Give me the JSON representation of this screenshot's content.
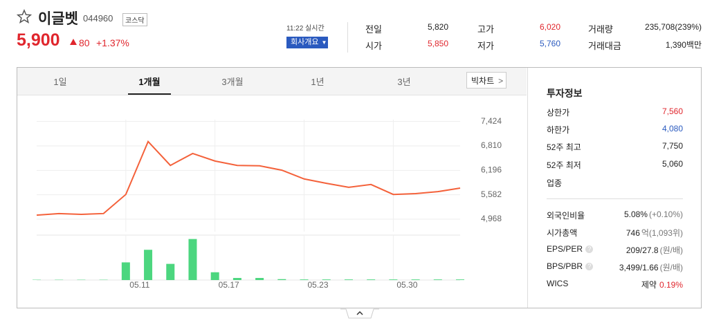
{
  "header": {
    "name": "이글벳",
    "code": "044960",
    "market": "코스닥",
    "price": "5,900",
    "change": "80",
    "change_rate": "+1.37%",
    "time": "11:22 실시간",
    "company_button": "회사개요",
    "up_color": "#e0262d"
  },
  "quote": {
    "rows": [
      [
        {
          "label": "전일",
          "value": "5,820"
        },
        {
          "label": "고가",
          "value": "6,020",
          "color": "#e0262d"
        },
        {
          "label": "거래량",
          "value": "235,708(239%)"
        }
      ],
      [
        {
          "label": "시가",
          "value": "5,850",
          "color": "#e0262d"
        },
        {
          "label": "저가",
          "value": "5,760",
          "color": "#2a5abf"
        },
        {
          "label": "거래대금",
          "value": "1,390백만"
        }
      ]
    ]
  },
  "tabs": {
    "items": [
      "1일",
      "1개월",
      "3개월",
      "1년",
      "3년"
    ],
    "active": 1,
    "big_chart": "빅차트"
  },
  "invest": {
    "title": "투자정보",
    "sections": [
      [
        {
          "label": "상한가",
          "value": "7,560",
          "color": "#e0262d"
        },
        {
          "label": "하한가",
          "value": "4,080",
          "color": "#2a5abf"
        },
        {
          "label": "52주 최고",
          "value": "7,750"
        },
        {
          "label": "52주 최저",
          "value": "5,060"
        },
        {
          "label": "업종"
        }
      ],
      [
        {
          "label": "외국인비율",
          "value": "5.08%",
          "unit": "(+0.10%)"
        },
        {
          "label": "시가총액",
          "value": "746",
          "unit": "억(1,093위)"
        },
        {
          "label": "EPS/PER",
          "help": "?",
          "value": "209/27.8",
          "unit": "(원/배)"
        },
        {
          "label": "BPS/PBR",
          "help": "?",
          "value": "3,499/1.66",
          "unit": "(원/배)"
        },
        {
          "label": "WICS",
          "value": "제약",
          "extra": "0.19%",
          "extra_color": "#e0262d"
        }
      ]
    ]
  },
  "chart_data": {
    "type": "line",
    "color": "#f4613a",
    "categories": [
      null,
      null,
      null,
      null,
      "05.11",
      null,
      null,
      null,
      "05.17",
      null,
      null,
      null,
      "05.23",
      null,
      null,
      null,
      "05.30",
      null,
      null,
      null
    ],
    "values": [
      5070,
      5110,
      5090,
      5110,
      5590,
      6920,
      6320,
      6620,
      6430,
      6320,
      6310,
      6200,
      5980,
      5870,
      5770,
      5840,
      5590,
      5610,
      5660,
      5750
    ],
    "ylim": [
      4655,
      7957
    ],
    "yticks": [
      {
        "value": 4968,
        "label": "4,968"
      },
      {
        "value": 5582,
        "label": "5,582"
      },
      {
        "value": 6196,
        "label": "6,196"
      },
      {
        "value": 6810,
        "label": "6,810"
      },
      {
        "value": 7424,
        "label": "7,424"
      }
    ],
    "grid": true,
    "volume": {
      "color": "#4cd67f",
      "ylim": [
        0,
        15000000
      ],
      "values": [
        100000,
        100000,
        100000,
        100000,
        5900000,
        10100000,
        5400000,
        13700000,
        2600000,
        700000,
        700000,
        300000,
        200000,
        200000,
        200000,
        200000,
        200000,
        200000,
        200000,
        200000
      ]
    }
  }
}
